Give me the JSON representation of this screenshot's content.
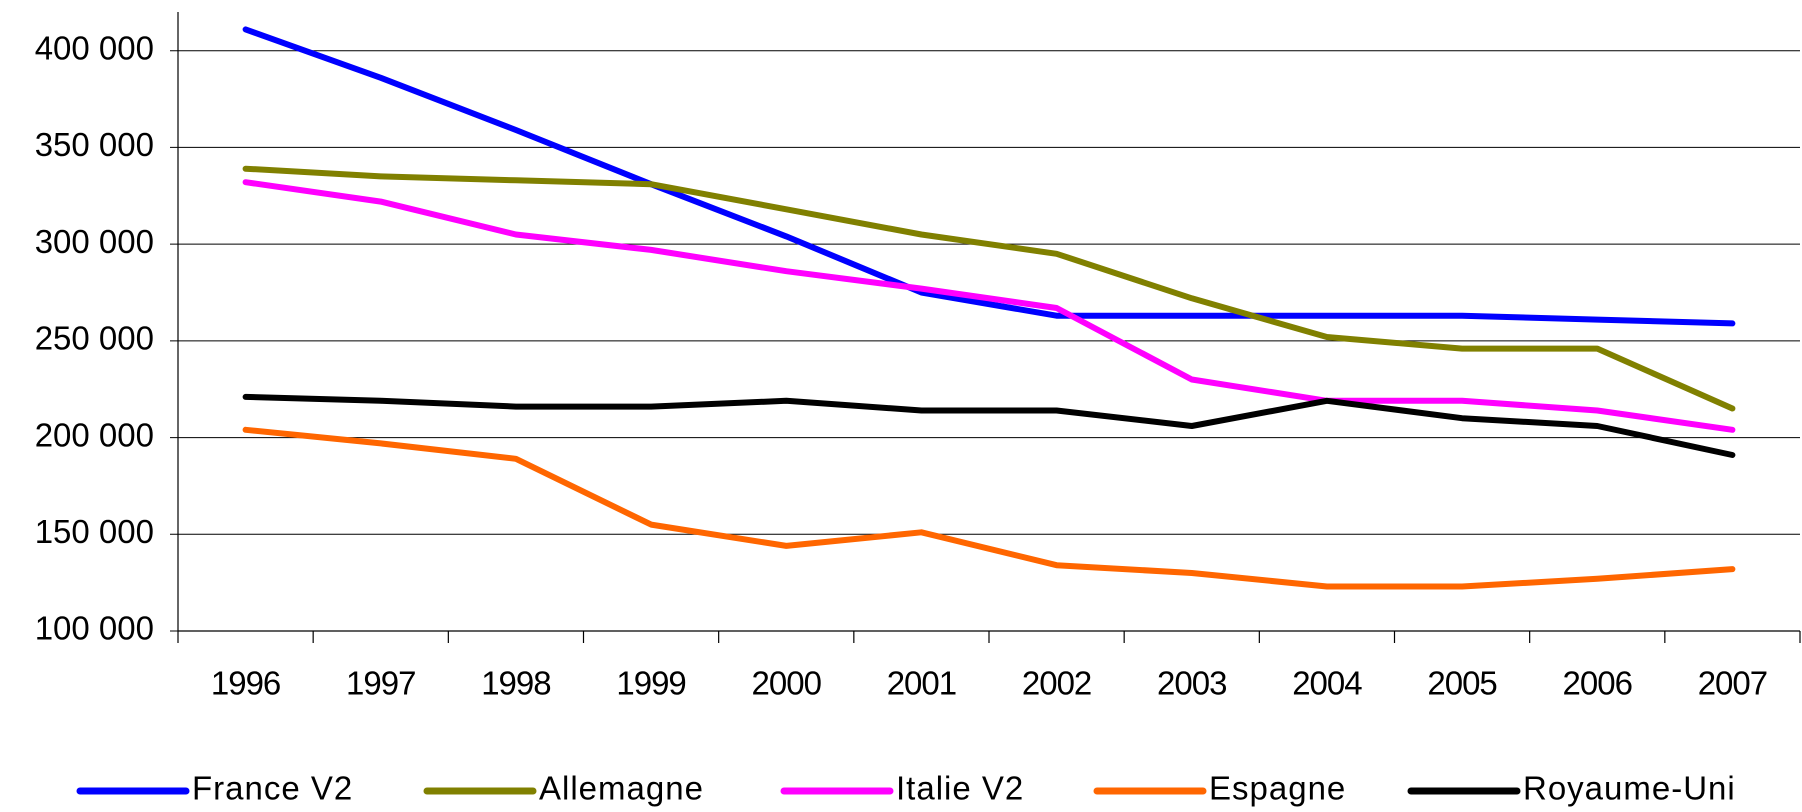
{
  "chart_data": {
    "type": "line",
    "categories": [
      "1996",
      "1997",
      "1998",
      "1999",
      "2000",
      "2001",
      "2002",
      "2003",
      "2004",
      "2005",
      "2006",
      "2007"
    ],
    "series": [
      {
        "name": "France V2",
        "color": "#0000ff",
        "values": [
          411000,
          386000,
          359000,
          331000,
          304000,
          275000,
          263000,
          263000,
          263000,
          263000,
          261000,
          259000
        ]
      },
      {
        "name": "Allemagne",
        "color": "#808000",
        "values": [
          339000,
          335000,
          333000,
          331000,
          318000,
          305000,
          295000,
          272000,
          252000,
          246000,
          246000,
          215000
        ]
      },
      {
        "name": "Italie V2",
        "color": "#ff00ff",
        "values": [
          332000,
          322000,
          305000,
          297000,
          286000,
          277000,
          267000,
          230000,
          219000,
          219000,
          214000,
          204000
        ]
      },
      {
        "name": "Espagne",
        "color": "#ff6600",
        "values": [
          204000,
          197000,
          189000,
          155000,
          144000,
          151000,
          134000,
          130000,
          123000,
          123000,
          127000,
          132000
        ]
      },
      {
        "name": "Royaume-Uni",
        "color": "#000000",
        "values": [
          221000,
          219000,
          216000,
          216000,
          219000,
          214000,
          214000,
          206000,
          219000,
          210000,
          206000,
          191000
        ]
      }
    ],
    "ylim": [
      100000,
      420000
    ],
    "yticks": [
      {
        "value": 100000,
        "label": "100 000"
      },
      {
        "value": 150000,
        "label": "150 000"
      },
      {
        "value": 200000,
        "label": "200 000"
      },
      {
        "value": 250000,
        "label": "250 000"
      },
      {
        "value": 300000,
        "label": "300 000"
      },
      {
        "value": 350000,
        "label": "350 000"
      },
      {
        "value": 400000,
        "label": "400 000"
      }
    ],
    "grid": true,
    "legend": "bottom"
  }
}
